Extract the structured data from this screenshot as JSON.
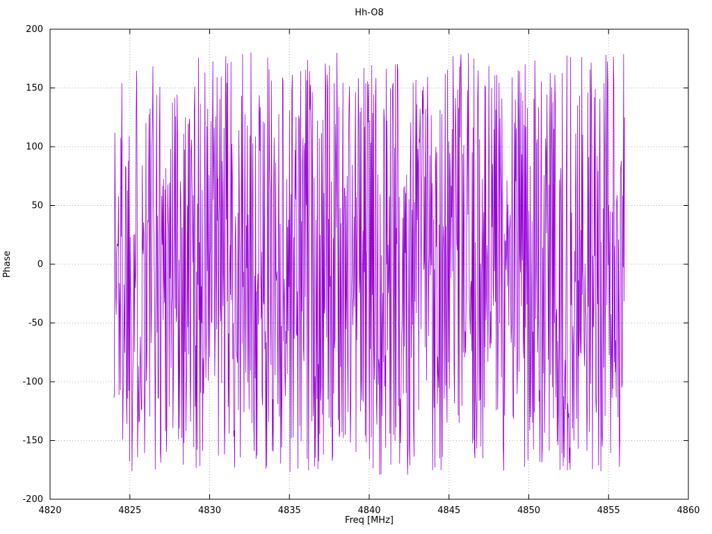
{
  "page": {
    "background_color": "#ffffff",
    "text_color": "#000000"
  },
  "chart_data": {
    "type": "line",
    "title": "Hh-O8",
    "xlabel": "Freq [MHz]",
    "ylabel": "Phase",
    "xlim": [
      4820,
      4860
    ],
    "ylim": [
      -200,
      200
    ],
    "x_ticks": [
      4820,
      4825,
      4830,
      4835,
      4840,
      4845,
      4850,
      4855,
      4860
    ],
    "y_ticks": [
      -200,
      -150,
      -100,
      -50,
      0,
      50,
      100,
      150,
      200
    ],
    "grid": true,
    "grid_style": "dotted",
    "grid_color": "#a8a8a8",
    "border_color": "#000000",
    "legend_position": "none",
    "series": [
      {
        "name": "phase",
        "color": "#9400d3",
        "x_start": 4824.0,
        "x_end": 4856.0,
        "n_points": 1100,
        "y_distribution": "uniform",
        "y_min": -180,
        "y_max": 180,
        "synthesis_seed": 1337,
        "description": "Wrapped phase noise vs frequency; values approximately uniformly distributed between -180 and +180 degrees, plotted as a continuous dense line from 4824 MHz to 4856 MHz"
      }
    ]
  }
}
